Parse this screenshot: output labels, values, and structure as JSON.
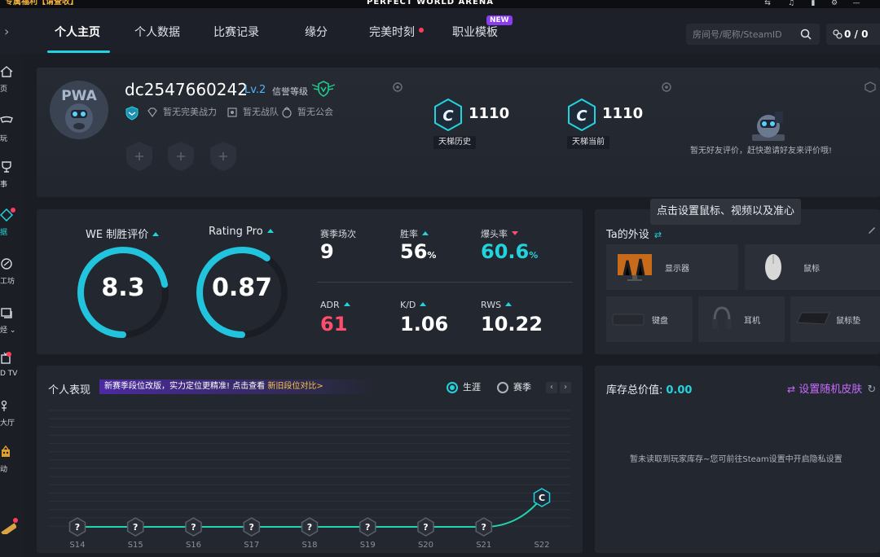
{
  "topbar": {
    "promo": "专属福利【请查收】",
    "brand": "PERFECT WORLD ARENA"
  },
  "nav": {
    "tabs": [
      {
        "label": "个人主页",
        "active": true
      },
      {
        "label": "个人数据"
      },
      {
        "label": "比赛记录"
      },
      {
        "label": "缘分"
      },
      {
        "label": "完美时刻"
      },
      {
        "label": "职业模板"
      }
    ],
    "new_badge": "NEW",
    "search_placeholder": "房间号/昵称/SteamID",
    "wallet": "0 / 0"
  },
  "sidebar": {
    "items": [
      {
        "label": "页",
        "icon": "home-icon"
      },
      {
        "label": "玩",
        "icon": "play-icon"
      },
      {
        "label": "事",
        "icon": "trophy-icon"
      },
      {
        "label": "据",
        "icon": "data-icon",
        "active": true
      },
      {
        "label": "工坊",
        "icon": "workshop-icon"
      },
      {
        "label": "烃 ⌄",
        "icon": "video-icon"
      },
      {
        "label": "D TV",
        "icon": "tv-icon"
      },
      {
        "label": "大厅",
        "icon": "lobby-icon"
      },
      {
        "label": "动",
        "icon": "event-icon"
      }
    ]
  },
  "profile": {
    "username": "dc2547660242",
    "level": "Lv.2",
    "credit_label": "信誉等级",
    "status": [
      "暂无完美战力",
      "暂无战队",
      "暂无公会"
    ],
    "ranks": [
      {
        "value": "1110",
        "label": "天梯历史"
      },
      {
        "value": "1110",
        "label": "天梯当前"
      }
    ],
    "friend_text": "暂无好友评价，赶快邀请好友来评价哦!"
  },
  "tooltip": "点击设置鼠标、视频以及准心",
  "stats": {
    "gauges": [
      {
        "title": "WE 制胜评价",
        "value": "8.3",
        "fraction": 0.72
      },
      {
        "title": "Rating Pro",
        "value": "0.87",
        "fraction": 0.6
      }
    ],
    "items": [
      {
        "label": "赛季场次",
        "value": "9",
        "color": "#ffffff"
      },
      {
        "label": "胜率",
        "value": "56",
        "unit": "%",
        "color": "#ffffff",
        "trend": "up"
      },
      {
        "label": "爆头率",
        "value": "60.6",
        "unit": "%",
        "color": "#22d3de",
        "trend": "down"
      },
      {
        "label": "ADR",
        "value": "61",
        "color": "#ff4d6d",
        "trend": "up"
      },
      {
        "label": "K/D",
        "value": "1.06",
        "color": "#ffffff",
        "trend": "up"
      },
      {
        "label": "RWS",
        "value": "10.22",
        "color": "#ffffff",
        "trend": "up"
      }
    ]
  },
  "gear": {
    "title": "Ta的外设",
    "items": [
      "显示器",
      "鼠标",
      "键盘",
      "耳机",
      "鼠标垫"
    ]
  },
  "performance": {
    "title": "个人表现",
    "banner_text": "新赛季段位改版，实力定位更精准! 点击查看",
    "banner_link": "新旧段位对比>",
    "toggle": [
      "生涯",
      "赛季"
    ],
    "seasons": [
      "S14",
      "S15",
      "S16",
      "S17",
      "S18",
      "S19",
      "S20",
      "S21",
      "S22"
    ],
    "marks": [
      "?",
      "?",
      "?",
      "?",
      "?",
      "?",
      "?",
      "?",
      "C"
    ]
  },
  "inventory": {
    "label": "库存总价值:",
    "value": "0.00",
    "random_skin": "设置随机皮肤",
    "empty_text": "暂未读取到玩家库存~您可前往Steam设置中开启隐私设置"
  },
  "colors": {
    "accent": "#22d3de",
    "danger": "#ff4d6d",
    "purple": "#c86bff"
  }
}
